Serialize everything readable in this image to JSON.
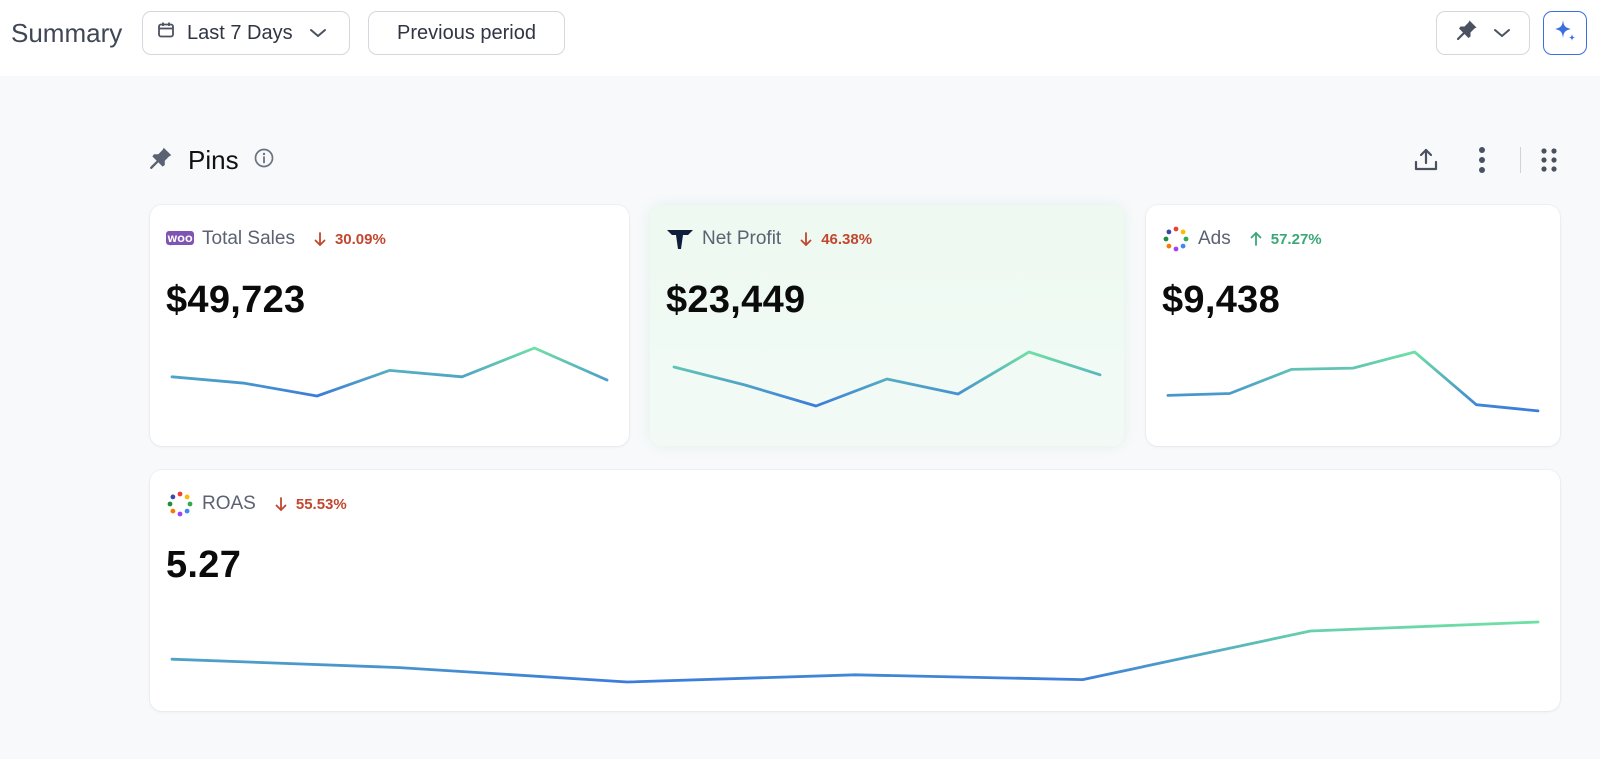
{
  "header": {
    "title": "Summary",
    "date_range_label": "Last 7 Days",
    "compare_label": "Previous period"
  },
  "section": {
    "title": "Pins"
  },
  "colors": {
    "down": "#c2472f",
    "up": "#3aa876",
    "line_start": "#3b7bdc",
    "line_end": "#6fe0a4",
    "ai_accent": "#3b6fe0"
  },
  "cards": [
    {
      "key": "total_sales",
      "label": "Total Sales",
      "icon": "woocommerce-icon",
      "delta": "30.09%",
      "direction": "down",
      "value": "$49,723",
      "highlighted": false,
      "trend": [
        0.55,
        0.45,
        0.25,
        0.65,
        0.55,
        1.0,
        0.5
      ]
    },
    {
      "key": "net_profit",
      "label": "Net Profit",
      "icon": "triple-whale-icon",
      "delta": "46.38%",
      "direction": "down",
      "value": "$23,449",
      "highlighted": true,
      "trend": [
        0.75,
        0.45,
        0.1,
        0.55,
        0.3,
        1.0,
        0.62
      ]
    },
    {
      "key": "ads",
      "label": "Ads",
      "icon": "ads-dots-icon",
      "delta": "57.27%",
      "direction": "up",
      "value": "$9,438",
      "highlighted": false,
      "trend": [
        0.3,
        0.33,
        0.72,
        0.74,
        1.0,
        0.15,
        0.05
      ]
    },
    {
      "key": "roas",
      "label": "ROAS",
      "icon": "ads-dots-icon",
      "delta": "55.53%",
      "direction": "down",
      "value": "5.27",
      "highlighted": false,
      "trend": [
        0.38,
        0.24,
        0.0,
        0.12,
        0.04,
        0.85,
        1.0
      ]
    }
  ]
}
